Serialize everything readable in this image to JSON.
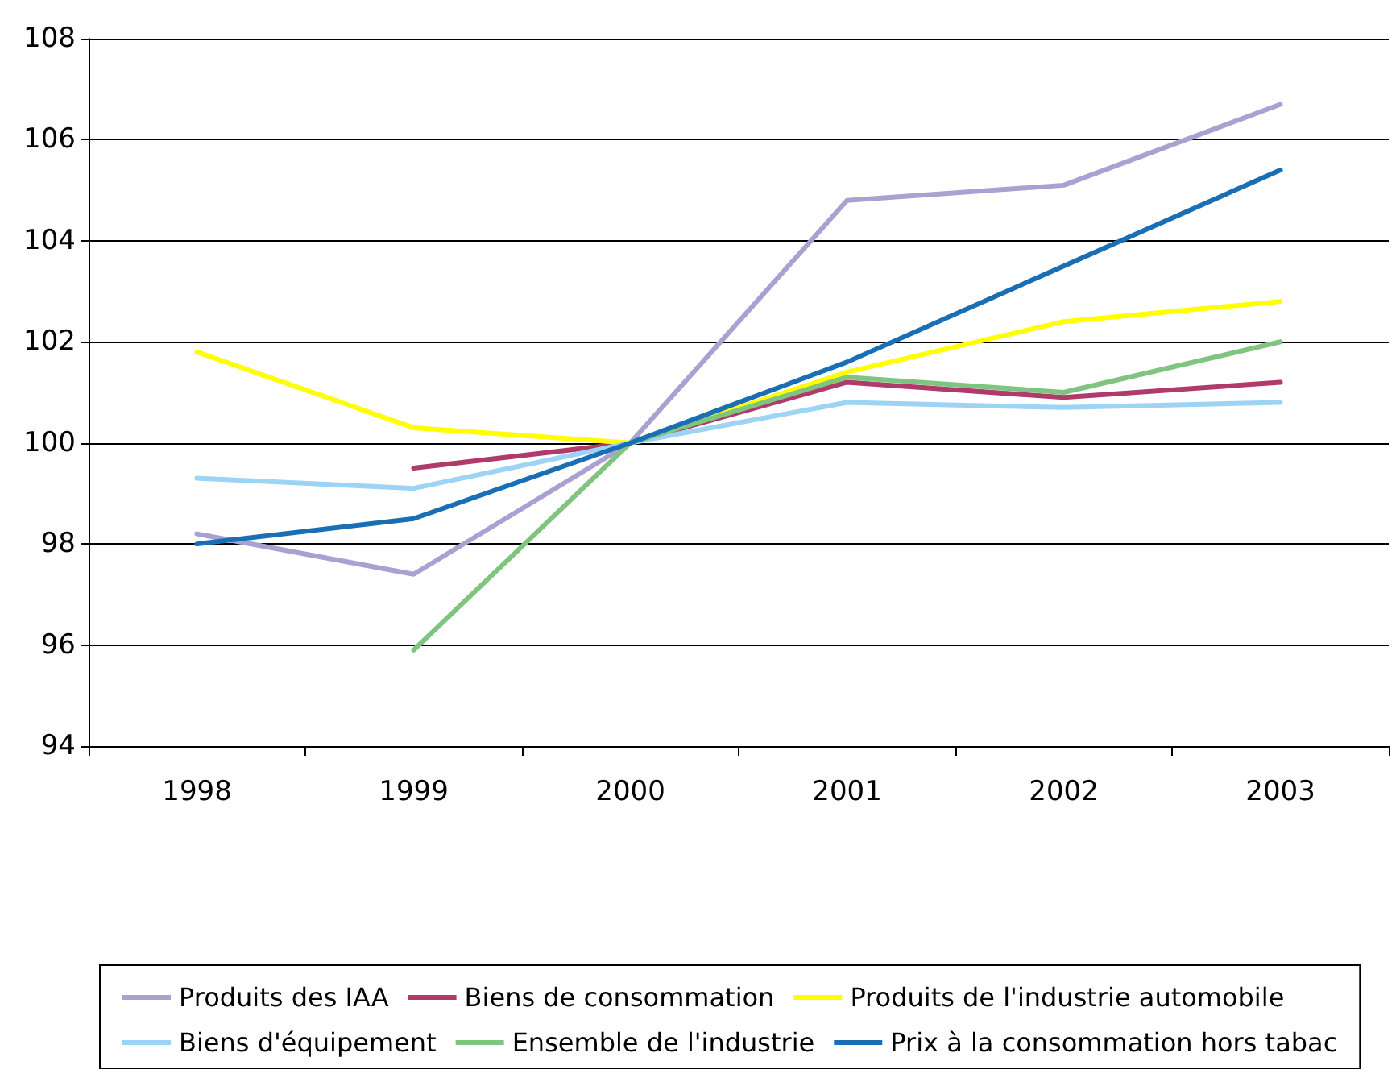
{
  "chart_data": {
    "type": "line",
    "categories": [
      "1998",
      "1999",
      "2000",
      "2001",
      "2002",
      "2003"
    ],
    "series": [
      {
        "name": "Produits des IAA",
        "color": "#a9a1d2",
        "values": [
          98.2,
          97.4,
          100,
          104.8,
          105.1,
          106.7
        ]
      },
      {
        "name": "Biens de consommation",
        "color": "#b03a6a",
        "values": [
          null,
          99.5,
          100,
          101.2,
          100.9,
          101.2
        ]
      },
      {
        "name": "Produits de l'industrie automobile",
        "color": "#ffff00",
        "values": [
          101.8,
          100.3,
          100,
          101.4,
          102.4,
          102.8
        ]
      },
      {
        "name": "Biens d'équipement",
        "color": "#9dd3f5",
        "values": [
          99.3,
          99.1,
          100,
          100.8,
          100.7,
          100.8
        ]
      },
      {
        "name": "Ensemble de l'industrie",
        "color": "#7fc47f",
        "values": [
          null,
          95.9,
          100,
          101.3,
          101.0,
          102.0
        ]
      },
      {
        "name": "Prix à la consommation hors tabac",
        "color": "#1a6fb4",
        "values": [
          98.0,
          98.5,
          100,
          101.6,
          103.5,
          105.4
        ]
      }
    ],
    "ylim": [
      94,
      108
    ],
    "yticks": [
      94,
      96,
      98,
      100,
      102,
      104,
      106,
      108
    ],
    "grid": "y",
    "legend": "bottom",
    "marker": "none",
    "line_style": "solid"
  }
}
